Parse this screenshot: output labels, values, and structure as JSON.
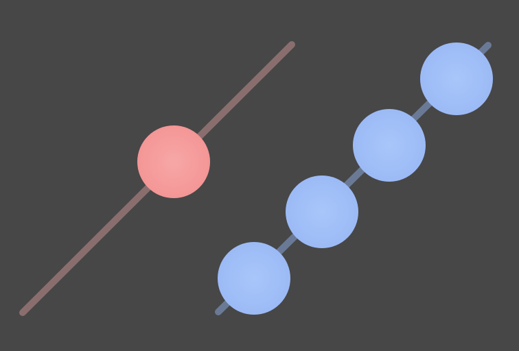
{
  "colors": {
    "background": "#474747",
    "left_track": "#8a6e6e",
    "left_ball": "#f49898",
    "left_ball_highlight": "#f7a7a7",
    "right_track": "#6a7a96",
    "right_ball": "#9dbdf7",
    "right_ball_highlight": "#a9c6fa"
  },
  "diagram": {
    "left_group": {
      "label": "single-ball-on-track",
      "ball_count": 1
    },
    "right_group": {
      "label": "beads-on-track",
      "ball_count": 4
    }
  }
}
